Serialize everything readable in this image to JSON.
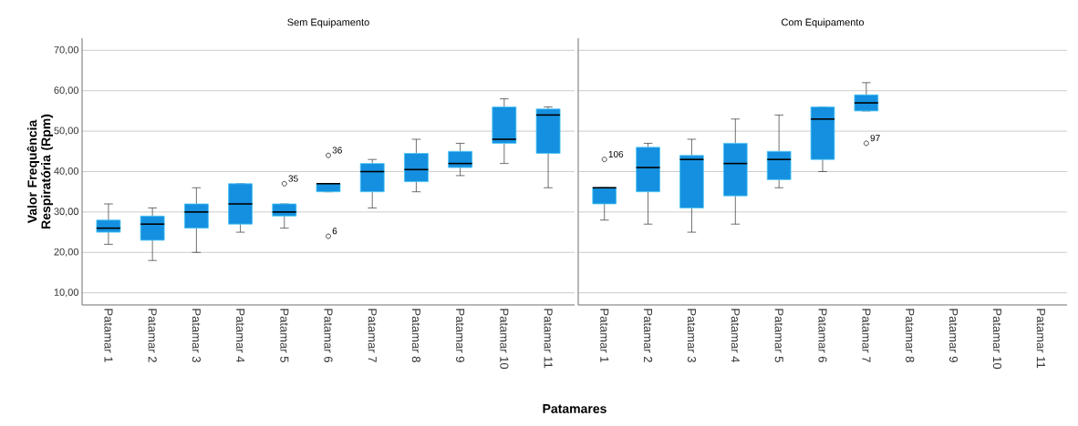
{
  "chart_data": [
    {
      "type": "box",
      "title": "Sem Equipamento",
      "ylabel": "Valor Frequência Respiratória (Rpm)",
      "xlabel": "Patamares",
      "categories": [
        "Patamar 1",
        "Patamar 2",
        "Patamar 3",
        "Patamar 4",
        "Patamar 5",
        "Patamar 6",
        "Patamar 7",
        "Patamar 8",
        "Patamar 9",
        "Patamar 10",
        "Patamar 11"
      ],
      "boxes": [
        {
          "low": 22,
          "q1": 25,
          "median": 26,
          "q3": 28,
          "high": 32
        },
        {
          "low": 18,
          "q1": 23,
          "median": 27,
          "q3": 29,
          "high": 31
        },
        {
          "low": 20,
          "q1": 26,
          "median": 30,
          "q3": 32,
          "high": 36
        },
        {
          "low": 25,
          "q1": 27,
          "median": 32,
          "q3": 37,
          "high": 37
        },
        {
          "low": 26,
          "q1": 29,
          "median": 30,
          "q3": 32,
          "high": 32,
          "outliers": [
            37
          ]
        },
        {
          "low": 35,
          "q1": 35,
          "median": 37,
          "q3": 37,
          "high": 37,
          "outliers": [
            44,
            24
          ]
        },
        {
          "low": 31,
          "q1": 35,
          "median": 40,
          "q3": 42,
          "high": 43
        },
        {
          "low": 35,
          "q1": 37.5,
          "median": 40.5,
          "q3": 44.5,
          "high": 48
        },
        {
          "low": 39,
          "q1": 41,
          "median": 42,
          "q3": 45,
          "high": 47
        },
        {
          "low": 42,
          "q1": 47,
          "median": 48,
          "q3": 56,
          "high": 58
        },
        {
          "low": 36,
          "q1": 44.5,
          "median": 54,
          "q3": 55.5,
          "high": 56
        }
      ],
      "color": "#1590e0",
      "annotations": [
        "35",
        "36",
        "6"
      ],
      "ylim": [
        7,
        73
      ],
      "yticks": [
        {
          "value": 10,
          "label": "10,00"
        },
        {
          "value": 20,
          "label": "20,00"
        },
        {
          "value": 30,
          "label": "30,00"
        },
        {
          "value": 40,
          "label": "40,00"
        },
        {
          "value": 50,
          "label": "50,00"
        },
        {
          "value": 60,
          "label": "60,00"
        },
        {
          "value": 70,
          "label": "70,00"
        }
      ],
      "grid": "y"
    },
    {
      "type": "box",
      "title": "Com Equipamento",
      "categories": [
        "Patamar 1",
        "Patamar 2",
        "Patamar 3",
        "Patamar 4",
        "Patamar 5",
        "Patamar 6",
        "Patamar 7",
        "Patamar 8",
        "Patamar 9",
        "Patamar 10",
        "Patamar 11"
      ],
      "boxes": [
        {
          "low": 28,
          "q1": 32,
          "median": 36,
          "q3": 36,
          "high": 36,
          "outliers": [
            43
          ]
        },
        {
          "low": 27,
          "q1": 35,
          "median": 41,
          "q3": 46,
          "high": 47
        },
        {
          "low": 25,
          "q1": 31,
          "median": 43,
          "q3": 44,
          "high": 48
        },
        {
          "low": 27,
          "q1": 34,
          "median": 42,
          "q3": 47,
          "high": 53
        },
        {
          "low": 36,
          "q1": 38,
          "median": 43,
          "q3": 45,
          "high": 54
        },
        {
          "low": 40,
          "q1": 43,
          "median": 53,
          "q3": 56,
          "high": 56
        },
        {
          "low": 55,
          "q1": 55,
          "median": 57,
          "q3": 59,
          "high": 62,
          "outliers": [
            47
          ]
        },
        null,
        null,
        null,
        null
      ],
      "color": "#1590e0",
      "annotations": [
        "106",
        "97"
      ],
      "ylim": [
        7,
        73
      ],
      "yticks": [
        10,
        20,
        30,
        40,
        50,
        60,
        70
      ],
      "grid": "y",
      "tick_labels": "x"
    }
  ]
}
